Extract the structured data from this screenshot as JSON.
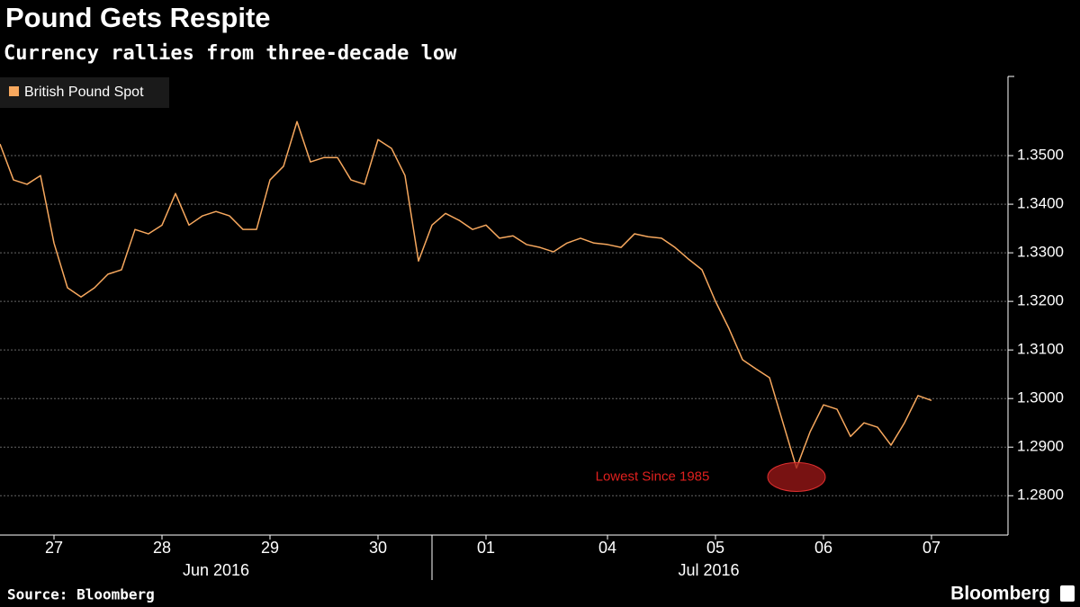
{
  "chart_data": {
    "type": "line",
    "title": "Pound Gets Respite",
    "subtitle": "Currency rallies from three-decade low",
    "source": "Source: Bloomberg",
    "brand": "Bloomberg",
    "annotation": "Lowest Since 1985",
    "legend_position": "top-left",
    "grid": true,
    "categories": [
      null,
      null,
      null,
      null,
      "27",
      null,
      null,
      null,
      null,
      null,
      null,
      null,
      "28",
      null,
      null,
      null,
      null,
      null,
      null,
      null,
      "29",
      null,
      null,
      null,
      null,
      null,
      null,
      null,
      "30",
      null,
      null,
      null,
      null,
      null,
      null,
      null,
      "01",
      null,
      null,
      null,
      null,
      null,
      null,
      null,
      null,
      "04",
      null,
      null,
      null,
      null,
      null,
      null,
      null,
      "05",
      null,
      null,
      null,
      null,
      null,
      null,
      null,
      "06",
      null,
      null,
      null,
      null,
      null,
      null,
      null,
      "07"
    ],
    "x_group_labels": [
      "Jun 2016",
      "Jul 2016"
    ],
    "series": [
      {
        "name": "British Pound Spot",
        "color": "#f7a85e",
        "values": [
          1.3524,
          1.345,
          1.3441,
          1.3459,
          1.332,
          1.3228,
          1.3209,
          1.3228,
          1.3256,
          1.3265,
          1.3348,
          1.3339,
          1.3357,
          1.3422,
          1.3357,
          1.3376,
          1.3385,
          1.3376,
          1.3348,
          1.3348,
          1.345,
          1.3478,
          1.357,
          1.3487,
          1.3496,
          1.3496,
          1.345,
          1.3441,
          1.3533,
          1.3515,
          1.3459,
          1.3283,
          1.3357,
          1.3381,
          1.3367,
          1.3348,
          1.3357,
          1.333,
          1.3335,
          1.3317,
          1.3311,
          1.3302,
          1.332,
          1.333,
          1.332,
          1.3317,
          1.3311,
          1.3339,
          1.3333,
          1.333,
          1.3311,
          1.3287,
          1.3265,
          1.32,
          1.3144,
          1.308,
          1.3061,
          1.3043,
          1.295,
          1.2857,
          1.2931,
          1.2987,
          1.2978,
          1.2922,
          1.295,
          1.2941,
          1.2904,
          1.295,
          1.3006,
          1.2996
        ]
      }
    ],
    "ylim": [
      1.2719,
      1.3663
    ],
    "yticks": [
      {
        "value": 1.28,
        "label": "1.2800"
      },
      {
        "value": 1.29,
        "label": "1.2900"
      },
      {
        "value": 1.3,
        "label": "1.3000"
      },
      {
        "value": 1.31,
        "label": "1.3100"
      },
      {
        "value": 1.32,
        "label": "1.3200"
      },
      {
        "value": 1.33,
        "label": "1.3300"
      },
      {
        "value": 1.34,
        "label": "1.3400"
      },
      {
        "value": 1.35,
        "label": "1.3500"
      }
    ]
  }
}
